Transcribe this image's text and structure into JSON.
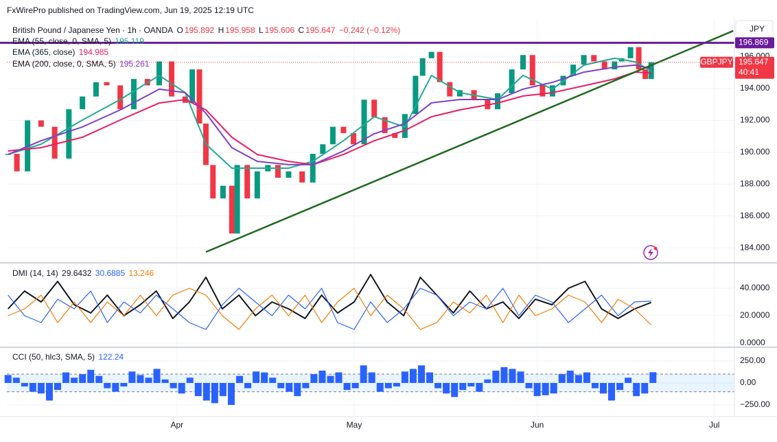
{
  "header": {
    "publisher": "FxWirePro published on TradingView.com, Jun 19, 2025 12:19 UTC"
  },
  "chart_data": [
    {
      "type": "line",
      "title": "British Pound / Japanese Yen · 1h · OANDA",
      "ohlc": [
        {
          "label": "O",
          "value": 195.892
        },
        {
          "label": "H",
          "value": 195.958
        },
        {
          "label": "L",
          "value": 195.606
        },
        {
          "label": "C",
          "value": 195.647
        }
      ],
      "change": "−0.242 (−0.12%)",
      "currency": "JPY",
      "countdown": "40:41",
      "xlim": [
        2.2,
        125.4
      ],
      "xticks": [
        {
          "value": 31,
          "label": "Apr"
        },
        {
          "value": 61,
          "label": "May"
        },
        {
          "value": 92,
          "label": "Jun"
        },
        {
          "value": 122,
          "label": "Jul"
        }
      ],
      "ylim": [
        183.1,
        198.35
      ],
      "yticks": [
        {
          "value": 184,
          "label": "184.000"
        },
        {
          "value": 186,
          "label": "186.000"
        },
        {
          "value": 188,
          "label": "188.000"
        },
        {
          "value": 190,
          "label": "190.000"
        },
        {
          "value": 192,
          "label": "192.000"
        },
        {
          "value": 194,
          "label": "194.000"
        },
        {
          "value": 196,
          "label": "196.000"
        }
      ],
      "grid": true,
      "series": [
        {
          "name": "GBPJPY",
          "up_color": "#089981",
          "down_color": "#f23645",
          "color": "#f23645",
          "x": [
            2.4,
            3.9,
            5.7,
            8,
            10.3,
            12.7,
            15,
            17.3,
            19.1,
            21.4,
            23.7,
            26,
            28,
            30.1,
            32.4,
            33.6,
            34.8,
            35.9,
            37.1,
            38.8,
            40.3,
            41.2,
            42.9,
            44.6,
            46.4,
            48.1,
            49.9,
            52.2,
            54,
            55.7,
            57.4,
            59.2,
            60.9,
            62.7,
            64.4,
            66.2,
            67.9,
            69.6,
            71.4,
            72.6,
            74.1,
            75.5,
            77.2,
            78.9,
            81.3,
            83.6,
            85.3,
            87.7,
            89.6,
            91.2,
            92.9,
            94.6,
            96.4,
            98.1,
            99.9,
            101.6,
            103.4,
            105.1,
            106.3,
            107.8,
            109.2,
            110.3,
            111.3
          ],
          "values": [
            189.9,
            188.8,
            192.0,
            191.6,
            189.6,
            192.7,
            193.5,
            194.4,
            194.2,
            192.7,
            194.6,
            194.2,
            195.7,
            193.5,
            193.1,
            195.2,
            191.8,
            189.2,
            187.1,
            187.9,
            184.9,
            189.2,
            187.1,
            188.8,
            189.2,
            188.4,
            188.8,
            188.1,
            189.9,
            190.5,
            191.6,
            191.2,
            190.5,
            193.3,
            192.2,
            191.2,
            190.9,
            192.4,
            194.8,
            195.9,
            196.3,
            194.4,
            193.5,
            193.9,
            193.3,
            192.7,
            193.7,
            195.2,
            196.1,
            194.2,
            193.5,
            194.2,
            194.8,
            195.5,
            196.1,
            195.7,
            195.2,
            195.7,
            195.9,
            196.6,
            195.2,
            194.6,
            195.647
          ]
        },
        {
          "name": "EMA (55, close, 0, SMA, 5)",
          "color": "#22ab94",
          "x": [
            2.4,
            8,
            15,
            21.4,
            28,
            32.4,
            35.9,
            40.3,
            44.6,
            49.9,
            54,
            59.2,
            64.4,
            69.6,
            74.1,
            78.9,
            85.3,
            89.6,
            94.6,
            99.9,
            105.1,
            108.5,
            111.3
          ],
          "values": [
            189.86,
            190.51,
            192.02,
            193.31,
            194.82,
            193.74,
            190.51,
            189.0,
            189.0,
            189.0,
            189.43,
            190.72,
            192.23,
            191.59,
            194.82,
            193.74,
            193.31,
            194.82,
            193.96,
            195.47,
            195.9,
            195.68,
            195.119
          ]
        },
        {
          "name": "EMA (365, close)",
          "color": "#e91e63",
          "x": [
            2.4,
            8,
            15,
            21.4,
            28,
            32.4,
            35.9,
            40.3,
            44.6,
            49.9,
            54,
            59.2,
            64.4,
            69.6,
            74.1,
            78.9,
            85.3,
            89.6,
            94.6,
            99.9,
            105.1,
            108.5,
            111.3
          ],
          "values": [
            190.08,
            190.29,
            190.94,
            192.02,
            193.09,
            193.31,
            192.66,
            190.94,
            189.86,
            189.43,
            189.22,
            189.86,
            190.72,
            191.37,
            192.23,
            192.66,
            193.09,
            193.53,
            193.74,
            194.17,
            194.6,
            195.03,
            194.985
          ]
        },
        {
          "name": "EMA (200, close, 0, SMA, 5)",
          "color": "#7e3fc9",
          "x": [
            2.4,
            8,
            15,
            21.4,
            28,
            32.4,
            35.9,
            40.3,
            44.6,
            49.9,
            54,
            59.2,
            64.4,
            69.6,
            74.1,
            78.9,
            85.3,
            89.6,
            94.6,
            99.9,
            105.1,
            108.5,
            111.3
          ],
          "values": [
            189.86,
            190.72,
            191.59,
            192.66,
            193.96,
            193.74,
            192.45,
            190.29,
            189.43,
            189.22,
            189.22,
            190.08,
            191.16,
            191.8,
            193.1,
            193.31,
            193.31,
            193.96,
            194.39,
            195.03,
            195.34,
            195.47,
            195.261
          ]
        }
      ],
      "hlines": [
        {
          "value": 196.869,
          "label": "196.869",
          "color": "#6a1b9a"
        }
      ],
      "trendline": {
        "x": [
          35.9,
          125.2
        ],
        "values": [
          183.74,
          197.62
        ],
        "color": "#1e6b1e"
      }
    },
    {
      "type": "line",
      "title": "DMI (14, 14)",
      "x": [
        2.4,
        5.2,
        8.0,
        10.8,
        13.6,
        16.4,
        19.2,
        22.0,
        24.8,
        27.5,
        30.3,
        33.1,
        35.9,
        38.7,
        41.5,
        44.3,
        47.1,
        49.9,
        52.7,
        55.5,
        58.2,
        61.0,
        63.8,
        66.6,
        69.4,
        72.2,
        75.0,
        77.8,
        80.6,
        83.4,
        86.2,
        88.9,
        91.7,
        94.5,
        97.3,
        100.1,
        102.9,
        105.7,
        108.5,
        111.3
      ],
      "ylim": [
        -2.5,
        57.5
      ],
      "yticks": [
        {
          "value": 0,
          "label": "0.0000"
        },
        {
          "value": 20,
          "label": "20.0000"
        },
        {
          "value": 40,
          "label": "40.0000"
        }
      ],
      "grid": true,
      "series": [
        {
          "color": "#131722",
          "values": [
            25,
            38,
            30,
            45,
            28,
            22,
            35,
            20,
            28,
            38,
            18,
            30,
            48,
            25,
            35,
            20,
            30,
            25,
            18,
            35,
            22,
            30,
            50,
            30,
            20,
            48,
            35,
            22,
            38,
            25,
            30,
            18,
            32,
            28,
            40,
            45,
            25,
            18,
            25,
            29.6432
          ]
        },
        {
          "color": "#2962ff",
          "values": [
            35,
            20,
            15,
            32,
            25,
            38,
            15,
            30,
            22,
            35,
            25,
            15,
            10,
            28,
            40,
            30,
            20,
            35,
            25,
            40,
            15,
            10,
            30,
            15,
            25,
            40,
            35,
            20,
            30,
            25,
            40,
            20,
            35,
            30,
            15,
            25,
            35,
            20,
            30,
            30.6885
          ]
        },
        {
          "color": "#f57c00",
          "values": [
            20,
            25,
            35,
            15,
            30,
            15,
            30,
            20,
            35,
            20,
            35,
            40,
            35,
            20,
            10,
            25,
            35,
            20,
            35,
            15,
            30,
            40,
            20,
            35,
            25,
            10,
            15,
            30,
            22,
            35,
            15,
            35,
            20,
            25,
            35,
            30,
            15,
            32,
            25,
            13.246
          ]
        }
      ]
    },
    {
      "type": "bar",
      "title": "CCI (50, hlc3, SMA, 5)",
      "color": "#2962ff",
      "x": [
        2.4,
        3.8,
        5.2,
        6.6,
        8,
        9.4,
        10.8,
        12.2,
        13.6,
        15,
        16.4,
        17.8,
        19.2,
        20.6,
        22,
        23.4,
        24.8,
        26.2,
        27.6,
        29,
        30.4,
        31.8,
        33.2,
        34.6,
        36,
        37.4,
        38.8,
        40.2,
        41.6,
        43,
        44.4,
        45.8,
        47.2,
        48.6,
        50,
        51.4,
        52.8,
        54.2,
        55.6,
        57,
        58.4,
        59.8,
        61.2,
        62.6,
        64,
        65.4,
        66.8,
        68.2,
        69.6,
        71,
        72.4,
        73.8,
        75.2,
        76.6,
        78,
        79.4,
        80.8,
        82.2,
        83.6,
        85,
        86.4,
        87.8,
        89.2,
        90.6,
        92,
        93.4,
        94.8,
        96.2,
        97.6,
        99,
        100.4,
        101.8,
        103.2,
        104.6,
        106,
        107.4,
        108.8,
        110.2,
        111.6
      ],
      "values": [
        90,
        60,
        -40,
        -100,
        -120,
        -200,
        -80,
        120,
        60,
        100,
        150,
        80,
        -60,
        -100,
        -40,
        130,
        90,
        60,
        160,
        40,
        -60,
        -120,
        60,
        -150,
        -200,
        -230,
        -150,
        -250,
        80,
        -60,
        130,
        120,
        60,
        -60,
        -100,
        -150,
        -60,
        100,
        140,
        80,
        120,
        -80,
        -60,
        200,
        120,
        -100,
        -60,
        -40,
        130,
        160,
        200,
        120,
        -60,
        -120,
        -160,
        -80,
        -40,
        -100,
        40,
        140,
        180,
        160,
        130,
        -60,
        -150,
        -140,
        -120,
        100,
        140,
        90,
        120,
        -60,
        -120,
        -200,
        -80,
        60,
        -150,
        -120,
        122.24
      ],
      "bands": [
        100,
        -100
      ],
      "ylim": [
        -375,
        390
      ],
      "yticks": [
        {
          "value": 250,
          "label": "250.00"
        },
        {
          "value": 0,
          "label": "0.00"
        },
        {
          "value": -250,
          "label": "−250.00"
        }
      ],
      "grid": true
    }
  ]
}
